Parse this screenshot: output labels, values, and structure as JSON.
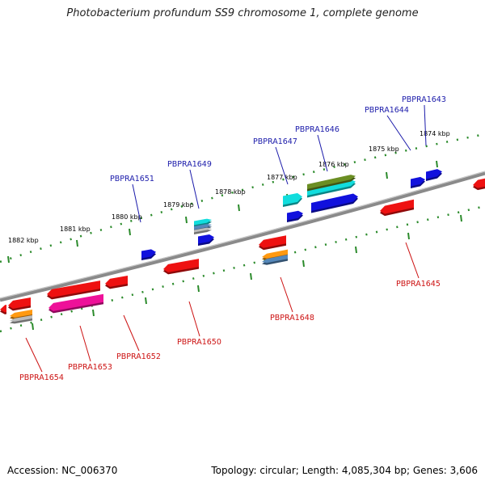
{
  "title": "Photobacterium profundum SS9 chromosome 1, complete genome",
  "footer": {
    "accession": "Accession: NC_006370",
    "topology": "Topology: circular; Length: 4,085,304 bp; Genes: 3,606"
  },
  "colors": {
    "backbone": "#8a8a8a",
    "tick": "#2a8a2a",
    "label_forward": "#1a1aaa",
    "label_reverse": "#cc1111",
    "gene_red": "#ee1111",
    "gene_blue": "#1111dd",
    "gene_cyan": "#11dddd",
    "gene_olive": "#6b8e23",
    "gene_magenta": "#ee1199",
    "gene_orange": "#ff9911",
    "gene_steel": "#5588bb",
    "gene_gray": "#bbbbbb"
  },
  "scale_labels": [
    "1882 kbp",
    "1881 kbp",
    "1880 kbp",
    "1879 kbp",
    "1878 kbp",
    "1877 kbp",
    "1876 kbp",
    "1875 kbp",
    "1874 kbp"
  ],
  "forward_genes": [
    "PBPRA1651",
    "PBPRA1649",
    "PBPRA1647",
    "PBPRA1646",
    "PBPRA1644",
    "PBPRA1643"
  ],
  "reverse_genes": [
    "PBPRA1654",
    "PBPRA1653",
    "PBPRA1652",
    "PBPRA1650",
    "PBPRA1648",
    "PBPRA1645"
  ]
}
